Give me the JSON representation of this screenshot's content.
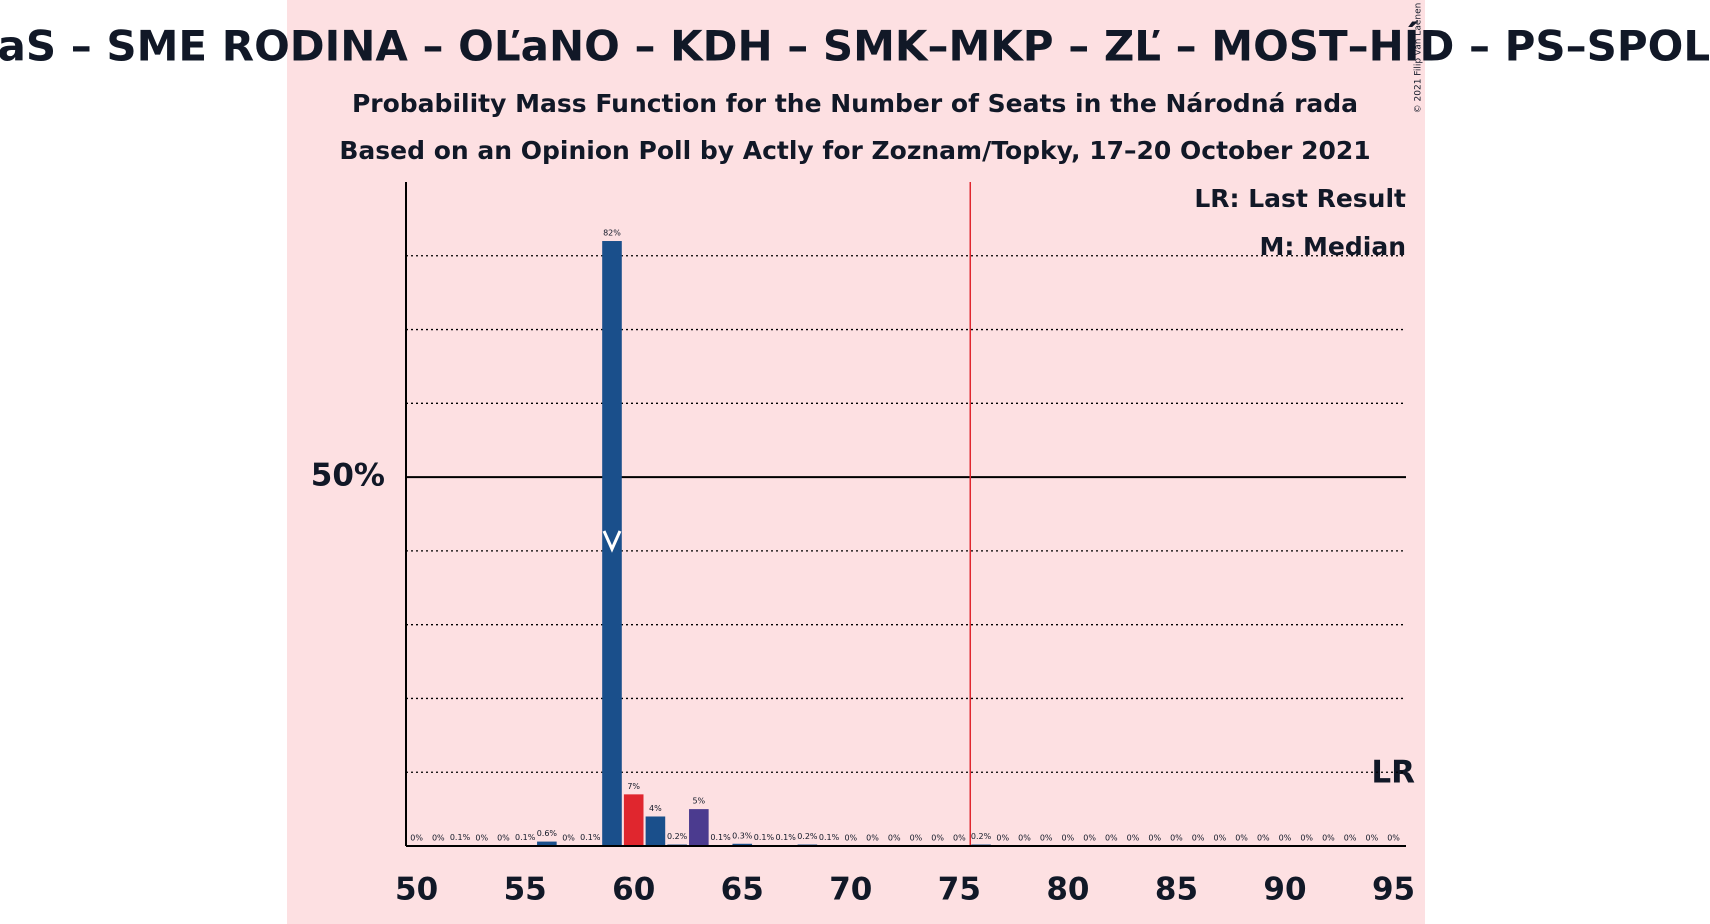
{
  "chart_data": {
    "type": "bar",
    "title": "SaS – SME RODINA – OĽaNO – KDH – SMK–MKP – ZĽ – MOST–HÍD – PS–SPOLU",
    "subtitle": [
      "Probability Mass Function for the Number of Seats in the Národná rada",
      "Based on an Opinion Poll by Actly for Zoznam/Topky, 17–20 October 2021"
    ],
    "copyright": "© 2021 Filip van Laenen",
    "legend": [
      "LR: Last Result",
      "M: Median"
    ],
    "lr_label": "LR",
    "categories": [
      50,
      51,
      52,
      53,
      54,
      55,
      56,
      57,
      58,
      59,
      60,
      61,
      62,
      63,
      64,
      65,
      66,
      67,
      68,
      69,
      70,
      71,
      72,
      73,
      74,
      75,
      76,
      77,
      78,
      79,
      80,
      81,
      82,
      83,
      84,
      85,
      86,
      87,
      88,
      89,
      90,
      91,
      92,
      93,
      94,
      95
    ],
    "values": [
      0,
      0,
      0.1,
      0,
      0,
      0.1,
      0.6,
      0,
      0.1,
      82,
      7,
      4,
      0.2,
      5,
      0.1,
      0.3,
      0.1,
      0.1,
      0.2,
      0.1,
      0,
      0,
      0,
      0,
      0,
      0,
      0.2,
      0,
      0,
      0,
      0,
      0,
      0,
      0,
      0,
      0,
      0,
      0,
      0,
      0,
      0,
      0,
      0,
      0,
      0,
      0
    ],
    "value_labels": [
      "0%",
      "0%",
      "0.1%",
      "0%",
      "0%",
      "0.1%",
      "0.6%",
      "0%",
      "0.1%",
      "82%",
      "7%",
      "4%",
      "0.2%",
      "5%",
      "0.1%",
      "0.3%",
      "0.1%",
      "0.1%",
      "0.2%",
      "0.1%",
      "0%",
      "0%",
      "0%",
      "0%",
      "0%",
      "0%",
      "0.2%",
      "0%",
      "0%",
      "0%",
      "0%",
      "0%",
      "0%",
      "0%",
      "0%",
      "0%",
      "0%",
      "0%",
      "0%",
      "0%",
      "0%",
      "0%",
      "0%",
      "0%",
      "0%",
      "0%"
    ],
    "color": "#1a4f8b",
    "special_colors": [
      {
        "category": 60,
        "color": "#e0262e"
      },
      {
        "category": 63,
        "color": "#4b3b8f"
      }
    ],
    "median": 59,
    "majority": 76,
    "xticks": [
      50,
      55,
      60,
      65,
      70,
      75,
      80,
      85,
      90,
      95
    ],
    "ylim": [
      0,
      90
    ],
    "yticks": [
      {
        "value": 50,
        "label": "50%"
      }
    ],
    "minor_yticks": [
      10,
      20,
      30,
      40,
      60,
      70,
      80
    ]
  }
}
